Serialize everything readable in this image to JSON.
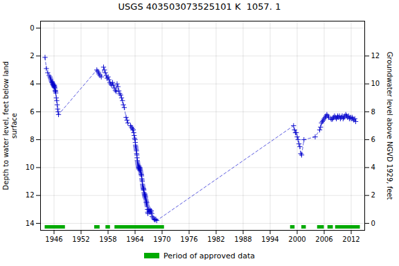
{
  "chart_data": {
    "type": "line",
    "title": "USGS 403503073525101 K  1057. 1",
    "ylabel": "Depth to water level, feet below land\nsurface",
    "y2label": "Groundwater level above NGVD 1929, feet",
    "x": [
      1944.0,
      1944.3,
      1944.6,
      1944.9,
      1945.1,
      1945.2,
      1945.3,
      1945.4,
      1945.5,
      1945.6,
      1945.65,
      1945.7,
      1945.75,
      1945.8,
      1945.85,
      1945.9,
      1945.95,
      1946.0,
      1946.05,
      1946.1,
      1946.15,
      1946.2,
      1946.25,
      1946.3,
      1946.35,
      1946.4,
      1946.5,
      1946.6,
      1946.7,
      1946.8,
      1946.9,
      1947.0,
      1955.5,
      1955.7,
      1955.9,
      1956.0,
      1956.2,
      1956.5,
      1957.0,
      1957.2,
      1957.4,
      1957.6,
      1957.8,
      1958.0,
      1958.2,
      1958.4,
      1958.6,
      1958.8,
      1959.0,
      1959.2,
      1959.4,
      1959.6,
      1959.8,
      1960.0,
      1960.2,
      1960.4,
      1960.6,
      1960.8,
      1961.0,
      1961.2,
      1961.4,
      1961.6,
      1962.0,
      1962.2,
      1962.4,
      1963.0,
      1963.2,
      1963.4,
      1963.5,
      1963.6,
      1963.7,
      1963.8,
      1963.9,
      1964.0,
      1964.05,
      1964.1,
      1964.15,
      1964.2,
      1964.25,
      1964.3,
      1964.35,
      1964.4,
      1964.45,
      1964.5,
      1964.55,
      1964.6,
      1964.65,
      1964.7,
      1964.75,
      1964.8,
      1964.85,
      1964.9,
      1964.95,
      1965.0,
      1965.05,
      1965.1,
      1965.15,
      1965.2,
      1965.25,
      1965.3,
      1965.35,
      1965.4,
      1965.45,
      1965.5,
      1965.55,
      1965.6,
      1965.65,
      1965.7,
      1965.75,
      1965.8,
      1965.85,
      1965.9,
      1965.95,
      1966.0,
      1966.05,
      1966.1,
      1966.15,
      1966.2,
      1966.25,
      1966.3,
      1966.35,
      1966.4,
      1966.45,
      1966.5,
      1966.55,
      1966.6,
      1966.65,
      1966.7,
      1966.75,
      1966.8,
      1966.85,
      1967.0,
      1967.1,
      1967.2,
      1967.3,
      1967.4,
      1967.5,
      1967.6,
      1967.7,
      1967.8,
      1968.0,
      1968.2,
      1968.4,
      1968.6,
      1968.8,
      1999.2,
      1999.4,
      1999.6,
      1999.8,
      2000.0,
      2000.2,
      2000.4,
      2000.6,
      2000.8,
      2001.0,
      2001.5,
      2004.0,
      2005.0,
      2005.2,
      2005.4,
      2005.6,
      2005.8,
      2006.0,
      2006.2,
      2006.4,
      2006.6,
      2006.8,
      2007.0,
      2007.5,
      2007.7,
      2007.9,
      2008.1,
      2008.3,
      2008.5,
      2008.7,
      2008.9,
      2009.0,
      2009.2,
      2009.4,
      2009.6,
      2009.8,
      2010.0,
      2010.2,
      2010.4,
      2010.6,
      2010.8,
      2011.0,
      2011.2,
      2011.4,
      2011.6,
      2011.8,
      2012.0,
      2012.2,
      2012.4,
      2012.6,
      2012.8,
      2013.0
    ],
    "series": [
      {
        "color": "#0000cc",
        "marker": "plus",
        "line_style": "dashed",
        "values": [
          2.1,
          2.9,
          3.2,
          3.4,
          3.5,
          3.6,
          3.7,
          3.8,
          3.9,
          3.85,
          3.9,
          4.0,
          4.05,
          4.0,
          4.1,
          4.15,
          4.1,
          4.2,
          4.25,
          4.1,
          4.2,
          4.3,
          4.45,
          4.55,
          4.5,
          4.65,
          5.0,
          5.2,
          5.5,
          5.8,
          6.0,
          6.2,
          3.0,
          3.1,
          3.2,
          3.3,
          3.4,
          3.5,
          2.8,
          3.0,
          3.2,
          3.4,
          3.6,
          3.5,
          3.7,
          3.9,
          4.0,
          4.1,
          3.9,
          4.1,
          4.3,
          4.45,
          4.55,
          4.0,
          4.2,
          4.5,
          4.7,
          4.8,
          5.0,
          5.2,
          5.5,
          5.7,
          6.4,
          6.6,
          6.8,
          7.0,
          7.1,
          7.2,
          7.3,
          7.3,
          7.5,
          7.7,
          7.9,
          8.0,
          8.2,
          8.4,
          8.5,
          8.6,
          8.7,
          8.8,
          9.0,
          9.1,
          9.3,
          9.5,
          9.6,
          9.7,
          9.8,
          9.9,
          10.0,
          10.1,
          10.0,
          9.9,
          10.0,
          10.1,
          10.2,
          10.0,
          10.1,
          10.2,
          10.3,
          10.4,
          10.5,
          10.5,
          10.6,
          10.8,
          10.9,
          11.0,
          11.2,
          11.3,
          11.4,
          11.5,
          11.6,
          11.5,
          11.6,
          11.8,
          11.9,
          12.0,
          12.1,
          11.9,
          12.0,
          12.2,
          12.1,
          12.3,
          12.5,
          12.4,
          12.6,
          12.5,
          12.7,
          12.8,
          13.0,
          13.2,
          13.3,
          13.0,
          13.1,
          13.2,
          13.0,
          13.1,
          13.2,
          13.1,
          13.3,
          13.5,
          13.6,
          13.7,
          13.75,
          13.7,
          13.8,
          7.0,
          7.3,
          7.5,
          7.5,
          7.8,
          8.0,
          8.3,
          8.5,
          9.0,
          9.1,
          8.0,
          7.8,
          7.3,
          7.1,
          6.8,
          6.7,
          6.6,
          6.5,
          6.4,
          6.3,
          6.2,
          6.3,
          6.4,
          6.5,
          6.55,
          6.5,
          6.4,
          6.3,
          6.4,
          6.5,
          6.4,
          6.3,
          6.4,
          6.3,
          6.5,
          6.4,
          6.3,
          6.5,
          6.4,
          6.3,
          6.2,
          6.3,
          6.4,
          6.3,
          6.5,
          6.4,
          6.5,
          6.4,
          6.5,
          6.6,
          6.5,
          6.7
        ]
      },
      {
        "name": "Period of approved data",
        "type": "segments",
        "color": "#00aa00",
        "y": 14.25,
        "periods": [
          [
            1944.0,
            1948.5
          ],
          [
            1955.0,
            1956.2
          ],
          [
            1957.5,
            1958.5
          ],
          [
            1959.5,
            1970.5
          ],
          [
            1998.5,
            1999.5
          ],
          [
            2001.0,
            2002.0
          ],
          [
            2004.5,
            2006.0
          ],
          [
            2006.8,
            2008.0
          ],
          [
            2008.5,
            2014.0
          ]
        ]
      }
    ],
    "xlim": [
      1943,
      2015
    ],
    "xticks": [
      1946,
      1952,
      1958,
      1964,
      1970,
      1976,
      1982,
      1988,
      1994,
      2000,
      2006,
      2012
    ],
    "ylim": [
      14.5,
      -0.5
    ],
    "yticks": [
      0,
      2,
      4,
      6,
      8,
      10,
      12,
      14
    ],
    "y2lim": [
      -0.5,
      14.5
    ],
    "y2ticks": [
      0,
      2,
      4,
      6,
      8,
      10,
      12
    ],
    "grid": true,
    "legend": "bottom"
  }
}
